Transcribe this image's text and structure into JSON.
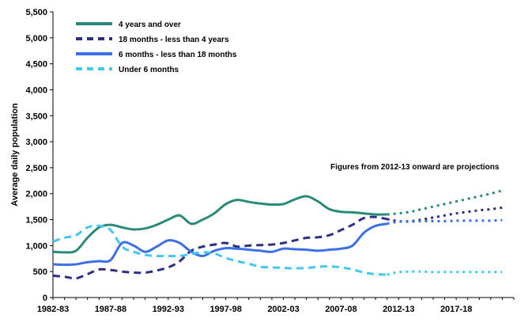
{
  "chart_data": {
    "type": "line",
    "title": "",
    "ylabel": "Average daily population",
    "xlabel": "",
    "ylim": [
      0,
      5500
    ],
    "yticks": [
      0,
      500,
      1000,
      1500,
      2000,
      2500,
      3000,
      3500,
      4000,
      4500,
      5000,
      5500
    ],
    "ytick_labels": [
      "0",
      "500",
      "1,000",
      "1,500",
      "2,000",
      "2,500",
      "3,000",
      "3,500",
      "4,000",
      "4,500",
      "5,000",
      "5,500"
    ],
    "xlim": [
      1982,
      2022
    ],
    "xticks": [
      1982,
      1987,
      1992,
      1997,
      2002,
      2007,
      2012,
      2017
    ],
    "xtick_labels": [
      "1982-83",
      "1987-88",
      "1992-93",
      "1997-98",
      "2002-03",
      "2007-08",
      "2012-13",
      "2017-18"
    ],
    "grid": false,
    "legend_position": "top-left",
    "annotation": "Figures from 2012-13 onward are projections",
    "projection_start": 2011,
    "series": [
      {
        "name": "4 years and over",
        "color": "#2a8a7a",
        "style": "solid",
        "x": [
          1982,
          1983,
          1984,
          1985,
          1986,
          1987,
          1988,
          1989,
          1990,
          1991,
          1992,
          1993,
          1994,
          1995,
          1996,
          1997,
          1998,
          1999,
          2000,
          2001,
          2002,
          2003,
          2004,
          2005,
          2006,
          2007,
          2008,
          2009,
          2010,
          2011,
          2012,
          2013,
          2014,
          2015,
          2016,
          2017,
          2018,
          2019,
          2020,
          2021
        ],
        "values": [
          880,
          870,
          900,
          1150,
          1350,
          1400,
          1350,
          1310,
          1330,
          1400,
          1500,
          1580,
          1420,
          1500,
          1620,
          1800,
          1880,
          1840,
          1810,
          1790,
          1800,
          1890,
          1950,
          1850,
          1700,
          1650,
          1640,
          1620,
          1600,
          1600,
          1620,
          1650,
          1700,
          1750,
          1800,
          1850,
          1900,
          1950,
          2000,
          2060
        ]
      },
      {
        "name": "18 months - less than 4 years",
        "color": "#2e2e86",
        "style": "dashed",
        "x": [
          1982,
          1983,
          1984,
          1985,
          1986,
          1987,
          1988,
          1989,
          1990,
          1991,
          1992,
          1993,
          1994,
          1995,
          1996,
          1997,
          1998,
          1999,
          2000,
          2001,
          2002,
          2003,
          2004,
          2005,
          2006,
          2007,
          2008,
          2009,
          2010,
          2011,
          2012,
          2013,
          2014,
          2015,
          2016,
          2017,
          2018,
          2019,
          2020,
          2021
        ],
        "values": [
          420,
          400,
          370,
          450,
          540,
          530,
          500,
          480,
          480,
          520,
          580,
          700,
          900,
          980,
          1020,
          1050,
          980,
          1000,
          1010,
          1020,
          1050,
          1100,
          1150,
          1160,
          1200,
          1300,
          1400,
          1530,
          1550,
          1510,
          1470,
          1470,
          1500,
          1540,
          1580,
          1620,
          1650,
          1680,
          1700,
          1730
        ]
      },
      {
        "name": "6 months - less than 18 months",
        "color": "#3a6fe8",
        "style": "solid",
        "x": [
          1982,
          1983,
          1984,
          1985,
          1986,
          1987,
          1988,
          1989,
          1990,
          1991,
          1992,
          1993,
          1994,
          1995,
          1996,
          1997,
          1998,
          1999,
          2000,
          2001,
          2002,
          2003,
          2004,
          2005,
          2006,
          2007,
          2008,
          2009,
          2010,
          2011,
          2012,
          2013,
          2014,
          2015,
          2016,
          2017,
          2018,
          2019,
          2020,
          2021
        ],
        "values": [
          640,
          630,
          640,
          680,
          700,
          720,
          1050,
          1000,
          880,
          980,
          1100,
          1050,
          880,
          800,
          900,
          950,
          940,
          920,
          900,
          880,
          940,
          930,
          920,
          900,
          920,
          940,
          1000,
          1250,
          1380,
          1420,
          1460,
          1460,
          1470,
          1470,
          1470,
          1480,
          1480,
          1480,
          1480,
          1490
        ]
      },
      {
        "name": "Under 6 months",
        "color": "#40c8ee",
        "style": "dashed",
        "x": [
          1982,
          1983,
          1984,
          1985,
          1986,
          1987,
          1988,
          1989,
          1990,
          1991,
          1992,
          1993,
          1994,
          1995,
          1996,
          1997,
          1998,
          1999,
          2000,
          2001,
          2002,
          2003,
          2004,
          2005,
          2006,
          2007,
          2008,
          2009,
          2010,
          2011,
          2012,
          2013,
          2014,
          2015,
          2016,
          2017,
          2018,
          2019,
          2020,
          2021
        ],
        "values": [
          1080,
          1150,
          1200,
          1350,
          1380,
          1300,
          980,
          880,
          820,
          800,
          800,
          800,
          840,
          870,
          850,
          760,
          700,
          650,
          590,
          580,
          570,
          560,
          570,
          590,
          600,
          580,
          540,
          480,
          450,
          440,
          490,
          500,
          500,
          490,
          490,
          490,
          490,
          490,
          490,
          490
        ]
      }
    ]
  }
}
